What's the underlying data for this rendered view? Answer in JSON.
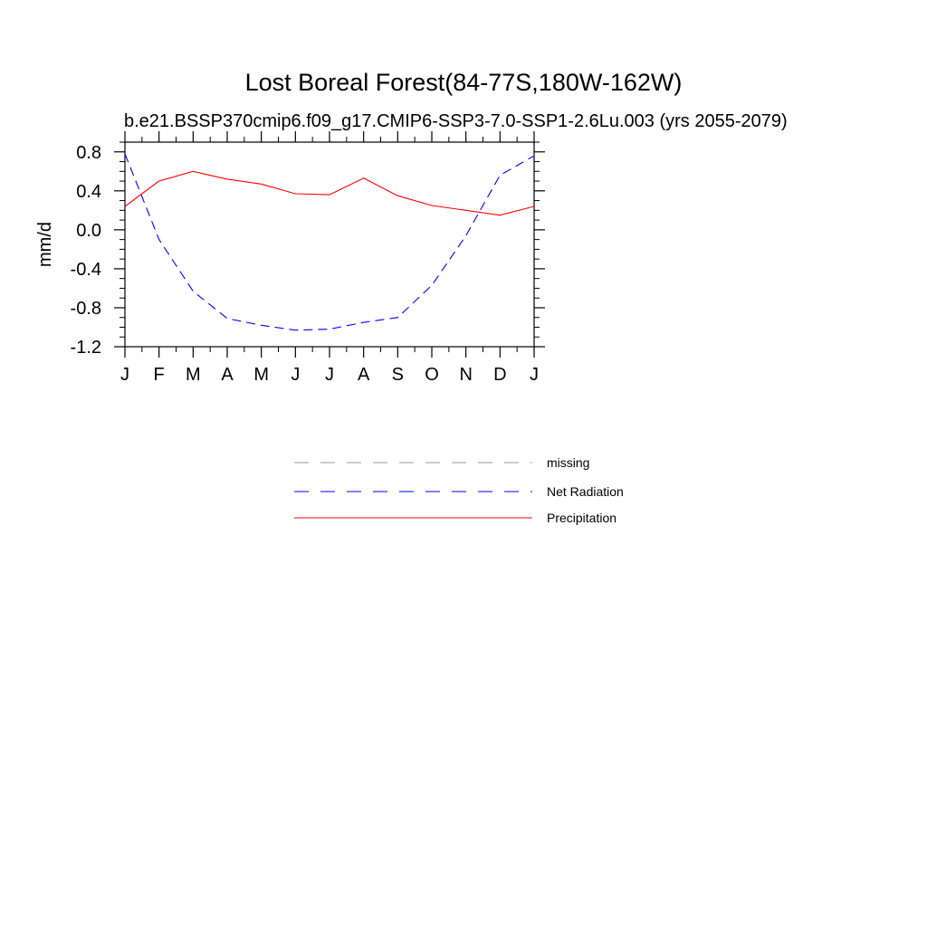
{
  "chart_data": {
    "type": "line",
    "title": "Lost Boreal Forest(84-77S,180W-162W)",
    "subtitle": "b.e21.BSSP370cmip6.f09_g17.CMIP6-SSP3-7.0-SSP1-2.6Lu.003 (yrs 2055-2079)",
    "xlabel": "",
    "ylabel": "mm/d",
    "categories": [
      "J",
      "F",
      "M",
      "A",
      "M",
      "J",
      "J",
      "A",
      "S",
      "O",
      "N",
      "D",
      "J"
    ],
    "ylim": [
      -1.2,
      0.9
    ],
    "yticks": [
      0.8,
      0.4,
      0.0,
      -0.4,
      -0.8,
      -1.2
    ],
    "ytick_labels": [
      "0.8",
      "0.4",
      "0.0",
      "-0.4",
      "-0.8",
      "-1.2"
    ],
    "grid": false,
    "legend_position": "below",
    "series": [
      {
        "name": "Net Radiation",
        "color": "#0000ff",
        "dash": "dashed",
        "values": [
          0.78,
          -0.1,
          -0.63,
          -0.91,
          -0.98,
          -1.03,
          -1.02,
          -0.95,
          -0.9,
          -0.57,
          -0.06,
          0.56,
          0.76
        ]
      },
      {
        "name": "Precipitation",
        "color": "#ff0000",
        "dash": "solid",
        "values": [
          0.24,
          0.5,
          0.6,
          0.52,
          0.47,
          0.37,
          0.36,
          0.53,
          0.35,
          0.25,
          0.2,
          0.15,
          0.24
        ]
      }
    ],
    "legend": [
      {
        "name": "missing",
        "color": "#999999",
        "dash": "dashed"
      },
      {
        "name": "Net Radiation",
        "color": "#0000ff",
        "dash": "dashed"
      },
      {
        "name": "Precipitation",
        "color": "#ff0000",
        "dash": "solid"
      }
    ]
  }
}
